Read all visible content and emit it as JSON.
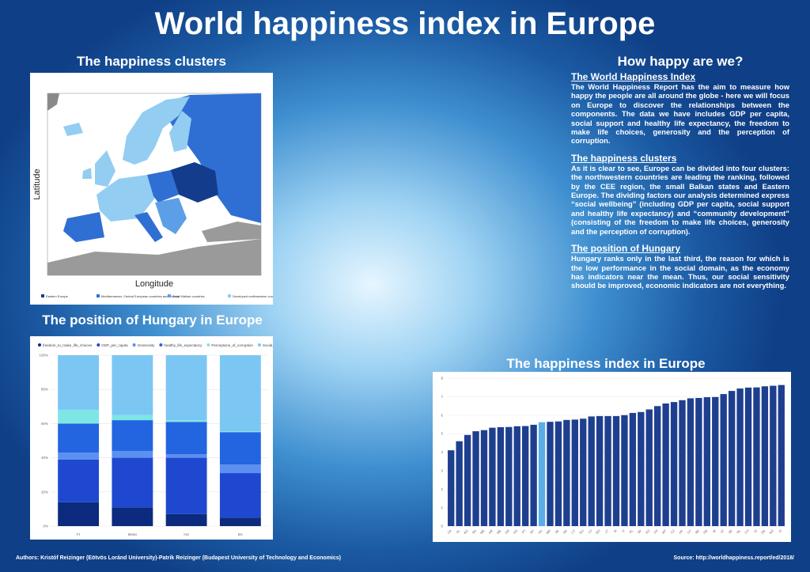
{
  "title": "World happiness index in Europe",
  "map": {
    "heading": "The happiness clusters",
    "xlabel": "Longitude",
    "ylabel": "Latitude",
    "legend": [
      {
        "name": "Eastern Europe",
        "color": "#143c8c"
      },
      {
        "name": "Mediterranean, Central European countries and Russia",
        "color": "#2f6fd4"
      },
      {
        "name": "Small Balkan countries",
        "color": "#5d9fe6"
      },
      {
        "name": "Developed northwestern countries",
        "color": "#93cdf2"
      }
    ]
  },
  "text": {
    "heading": "How happy are we?",
    "sections": [
      {
        "title": "The World Happiness Index",
        "body": "The World Happiness Report has the aim to measure how happy the people are all around the globe - here we will focus on Europe to discover the relationships between the components. The data we have includes GDP per capita, social support and healthy life expectancy, the freedom to make life choices, generosity and the perception of corruption."
      },
      {
        "title": "The happiness clusters",
        "body": "As it is clear to see, Europe can be divided into four clusters: the northwestern countries are leading the ranking, followed by the CEE region, the small Balkan states and Eastern Europe. The dividing factors our analysis determined express “social wellbeing” (including GDP per capita, social support and healthy life expectancy) and “community development” (consisting of the freedom to make life choices, generosity and the perception of corruption)."
      },
      {
        "title": "The position of Hungary",
        "body": "Hungary ranks only in the last third, the reason for which is the low performance in the social domain, as the economy has indicators near the mean. Thus, our social sensitivity should be improved, economic indicators are not everything."
      }
    ]
  },
  "footer": {
    "authors": "Authors: Kristóf Reizinger (Eötvös Loránd University)-Patrik Reizinger (Budapest University of Technology and Economics)",
    "source": "Source: http://worldhappiness.report/ed/2018/"
  },
  "chart_data": [
    {
      "type": "stacked_bar",
      "title": "The position of Hungary in Europe",
      "categories": [
        "FI",
        "Mean",
        "HU",
        "BA"
      ],
      "series": [
        {
          "name": "freedom_to_make_life_choices",
          "color": "#0c2a7e",
          "values": [
            14,
            11,
            7,
            5
          ]
        },
        {
          "name": "GDP_per_capita",
          "color": "#1f48d0",
          "values": [
            25,
            29,
            33,
            26
          ]
        },
        {
          "name": "Generosity",
          "color": "#5b8ff0",
          "values": [
            4,
            4,
            2,
            5
          ]
        },
        {
          "name": "healthy_life_expectancy",
          "color": "#2365e0",
          "values": [
            17,
            18,
            19,
            19
          ]
        },
        {
          "name": "Perceptions_of_corruption",
          "color": "#7de6e4",
          "values": [
            8,
            3,
            1,
            0.5
          ]
        },
        {
          "name": "Social_support",
          "color": "#7cc6f4",
          "values": [
            32,
            35,
            38,
            44.5
          ]
        }
      ],
      "ylim": [
        0,
        100
      ],
      "yticks": [
        {
          "value": 0,
          "label": "0%"
        },
        {
          "value": 20,
          "label": "20%"
        },
        {
          "value": 40,
          "label": "40%"
        },
        {
          "value": 60,
          "label": "60%"
        },
        {
          "value": 80,
          "label": "80%"
        },
        {
          "value": 100,
          "label": "100%"
        }
      ],
      "grid": true
    },
    {
      "type": "bar",
      "title": "The happiness index in Europe",
      "categories": [
        "UA",
        "AL",
        "BG",
        "BA",
        "MK",
        "HR",
        "ME",
        "GR",
        "RS",
        "PT",
        "BY",
        "HU",
        "MD",
        "XK",
        "EE",
        "CY",
        "RU",
        "LV",
        "RO",
        "LT",
        "SI",
        "IT",
        "PL",
        "SK",
        "ES",
        "FR",
        "MT",
        "CZ",
        "UK",
        "LU",
        "BE",
        "DE",
        "IE",
        "AT",
        "SE",
        "NL",
        "CH",
        "IS",
        "DK",
        "NO",
        "FI"
      ],
      "values": [
        4.1,
        4.59,
        4.93,
        5.13,
        5.19,
        5.32,
        5.35,
        5.36,
        5.4,
        5.41,
        5.48,
        5.62,
        5.64,
        5.66,
        5.74,
        5.76,
        5.81,
        5.93,
        5.95,
        5.95,
        5.95,
        6.0,
        6.12,
        6.17,
        6.31,
        6.49,
        6.63,
        6.71,
        6.81,
        6.91,
        6.93,
        6.97,
        6.98,
        7.14,
        7.31,
        7.44,
        7.49,
        7.5,
        7.56,
        7.59,
        7.63
      ],
      "colors": [
        "#1e3f8f",
        "#1e3f8f",
        "#1e3f8f",
        "#1e3f8f",
        "#1e3f8f",
        "#1e3f8f",
        "#1e3f8f",
        "#1e3f8f",
        "#1e3f8f",
        "#1e3f8f",
        "#1e3f8f",
        "#5aaee8",
        "#1e3f8f",
        "#1e3f8f",
        "#1e3f8f",
        "#1e3f8f",
        "#1e3f8f",
        "#1e3f8f",
        "#1e3f8f",
        "#1e3f8f",
        "#1e3f8f",
        "#1e3f8f",
        "#1e3f8f",
        "#1e3f8f",
        "#1e3f8f",
        "#1e3f8f",
        "#1e3f8f",
        "#1e3f8f",
        "#1e3f8f",
        "#1e3f8f",
        "#1e3f8f",
        "#1e3f8f",
        "#1e3f8f",
        "#1e3f8f",
        "#1e3f8f",
        "#1e3f8f",
        "#1e3f8f",
        "#1e3f8f",
        "#1e3f8f",
        "#1e3f8f",
        "#1e3f8f"
      ],
      "ylim": [
        0,
        8
      ],
      "yticks": [
        0,
        1,
        2,
        3,
        4,
        5,
        6,
        7,
        8
      ],
      "grid": true
    }
  ]
}
